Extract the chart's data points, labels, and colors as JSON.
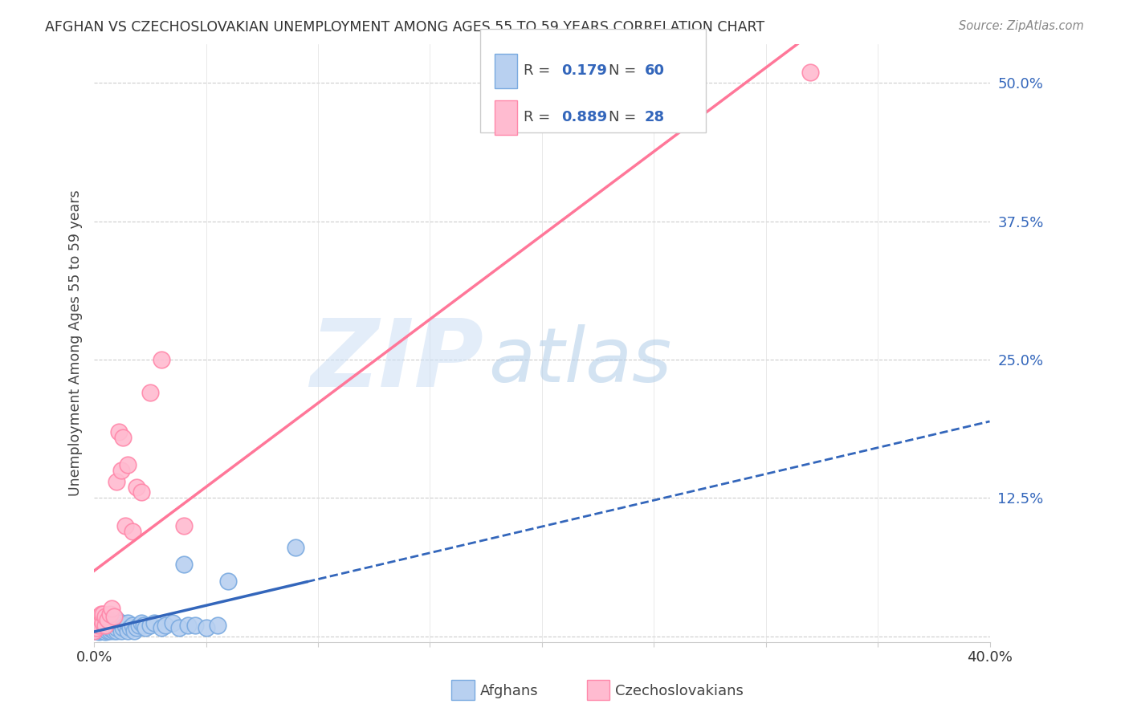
{
  "title": "AFGHAN VS CZECHOSLOVAKIAN UNEMPLOYMENT AMONG AGES 55 TO 59 YEARS CORRELATION CHART",
  "source": "Source: ZipAtlas.com",
  "ylabel": "Unemployment Among Ages 55 to 59 years",
  "xlim": [
    0.0,
    0.4
  ],
  "ylim": [
    -0.005,
    0.535
  ],
  "xticks": [
    0.0,
    0.05,
    0.1,
    0.15,
    0.2,
    0.25,
    0.3,
    0.35,
    0.4
  ],
  "yticks_right": [
    0.0,
    0.125,
    0.25,
    0.375,
    0.5
  ],
  "ytick_labels_right": [
    "",
    "12.5%",
    "25.0%",
    "37.5%",
    "50.0%"
  ],
  "grid_color": "#cccccc",
  "background_color": "#ffffff",
  "afghan_color": "#b8d0f0",
  "afghan_edge_color": "#7aaae0",
  "czech_color": "#ffbbd0",
  "czech_edge_color": "#ff88aa",
  "trend_blue_color": "#3366bb",
  "trend_pink_color": "#ff7799",
  "watermark_zip_color": "#c5d8f0",
  "watermark_atlas_color": "#a8c8e8",
  "legend_label_blue": "Afghans",
  "legend_label_pink": "Czechoslovakians",
  "afghan_x": [
    0.0,
    0.001,
    0.001,
    0.001,
    0.002,
    0.002,
    0.002,
    0.002,
    0.003,
    0.003,
    0.003,
    0.004,
    0.004,
    0.004,
    0.004,
    0.005,
    0.005,
    0.005,
    0.005,
    0.006,
    0.006,
    0.006,
    0.007,
    0.007,
    0.007,
    0.008,
    0.008,
    0.009,
    0.009,
    0.01,
    0.01,
    0.01,
    0.011,
    0.012,
    0.012,
    0.013,
    0.014,
    0.015,
    0.015,
    0.016,
    0.017,
    0.018,
    0.019,
    0.02,
    0.021,
    0.022,
    0.023,
    0.025,
    0.027,
    0.03,
    0.032,
    0.035,
    0.038,
    0.04,
    0.042,
    0.045,
    0.05,
    0.055,
    0.06,
    0.09
  ],
  "afghan_y": [
    0.005,
    0.008,
    0.01,
    0.012,
    0.004,
    0.008,
    0.01,
    0.015,
    0.005,
    0.008,
    0.012,
    0.005,
    0.008,
    0.01,
    0.015,
    0.004,
    0.006,
    0.01,
    0.015,
    0.005,
    0.008,
    0.012,
    0.005,
    0.008,
    0.012,
    0.006,
    0.01,
    0.005,
    0.012,
    0.005,
    0.008,
    0.015,
    0.01,
    0.005,
    0.012,
    0.008,
    0.01,
    0.005,
    0.012,
    0.008,
    0.01,
    0.005,
    0.008,
    0.01,
    0.012,
    0.01,
    0.008,
    0.01,
    0.012,
    0.008,
    0.01,
    0.012,
    0.008,
    0.065,
    0.01,
    0.01,
    0.008,
    0.01,
    0.05,
    0.08
  ],
  "czech_x": [
    0.0,
    0.001,
    0.001,
    0.002,
    0.002,
    0.003,
    0.003,
    0.004,
    0.004,
    0.005,
    0.005,
    0.006,
    0.007,
    0.008,
    0.009,
    0.01,
    0.011,
    0.012,
    0.013,
    0.014,
    0.015,
    0.017,
    0.019,
    0.021,
    0.025,
    0.03,
    0.04,
    0.32
  ],
  "czech_y": [
    0.005,
    0.008,
    0.012,
    0.01,
    0.018,
    0.015,
    0.02,
    0.012,
    0.02,
    0.01,
    0.018,
    0.015,
    0.02,
    0.025,
    0.018,
    0.14,
    0.185,
    0.15,
    0.18,
    0.1,
    0.155,
    0.095,
    0.135,
    0.13,
    0.22,
    0.25,
    0.1,
    0.51
  ]
}
